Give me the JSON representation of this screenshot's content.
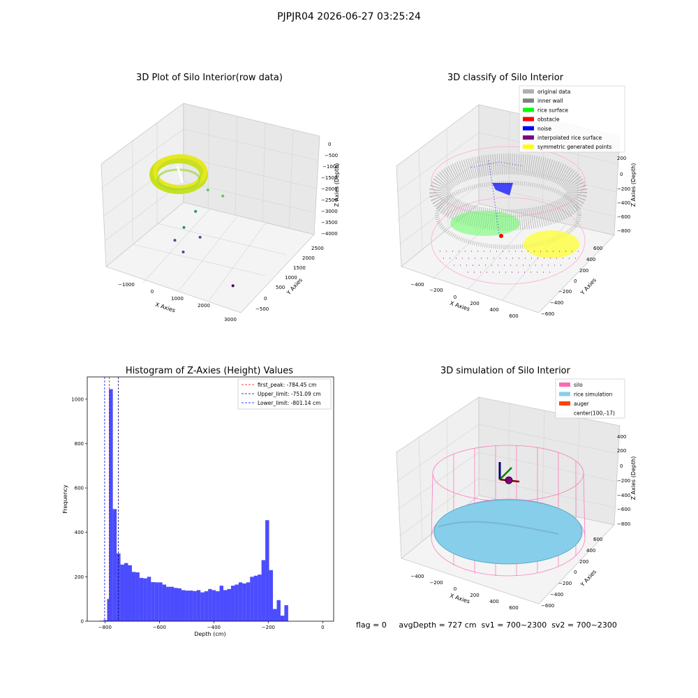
{
  "figure": {
    "suptitle": "PJPJR04 2026-06-27 03:25:24"
  },
  "footer": {
    "text": "flag = 0     avgDepth = 727 cm  sv1 = 700~2300  sv2 = 700~2300"
  },
  "chart_data": [
    {
      "type": "scatter",
      "subtype": "3d",
      "title": "3D Plot of Silo Interior(row data)",
      "xlabel": "X Axies",
      "ylabel": "Y Axies",
      "zlabel": "Z Axies (Depth)",
      "x_ticks": [
        "−1000",
        "0",
        "1000",
        "2000",
        "3000"
      ],
      "y_ticks": [
        "−500",
        "0",
        "500",
        "1000",
        "1500",
        "2000",
        "2500"
      ],
      "z_ticks": [
        "0",
        "−500",
        "−1000",
        "−1500",
        "−2000",
        "−2500",
        "−3000",
        "−3500",
        "−4000"
      ],
      "colormap": [
        "#440154",
        "#3b528b",
        "#21918c",
        "#5ec962",
        "#fde725"
      ],
      "outliers": [
        {
          "x": 1250,
          "y": 1200,
          "z": -2100
        },
        {
          "x": 1600,
          "y": 1500,
          "z": -2300
        },
        {
          "x": 1000,
          "y": 900,
          "z": -2600
        },
        {
          "x": 700,
          "y": 700,
          "z": -3000
        },
        {
          "x": 500,
          "y": 500,
          "z": -3300
        },
        {
          "x": 1400,
          "y": 600,
          "z": -3100
        },
        {
          "x": 900,
          "y": 400,
          "z": -3500
        },
        {
          "x": 2900,
          "y": 300,
          "z": -4000
        }
      ],
      "grid": true
    },
    {
      "type": "scatter",
      "subtype": "3d",
      "title": "3D classify of Silo Interior",
      "xlabel": "X Axies",
      "ylabel": "Y Axies",
      "zlabel": "Z Axies (Depth)",
      "x_ticks": [
        "−400",
        "−200",
        "0",
        "200",
        "400",
        "600"
      ],
      "y_ticks": [
        "−600",
        "−400",
        "−200",
        "0",
        "200",
        "400",
        "600"
      ],
      "z_ticks": [
        "200",
        "0",
        "−200",
        "−400",
        "−600",
        "−800"
      ],
      "legend": [
        {
          "label": "original data",
          "color": "#b0b0b0"
        },
        {
          "label": "inner wall",
          "color": "#808080"
        },
        {
          "label": "rice surface",
          "color": "#00ff00"
        },
        {
          "label": "obstacle",
          "color": "#ff0000"
        },
        {
          "label": "noise",
          "color": "#0000ff"
        },
        {
          "label": "interpolated rice surface",
          "color": "#800080"
        },
        {
          "label": "symmetric generated points",
          "color": "#ffff00"
        }
      ],
      "legend_position": "top-right",
      "grid": true
    },
    {
      "type": "bar",
      "subtype": "histogram",
      "title": "Histogram of Z-Axies (Height) Values",
      "xlabel": "Depth (cm)",
      "ylabel": "Frequency",
      "xlim": [
        -865,
        40
      ],
      "ylim": [
        0,
        1100
      ],
      "x_ticks": [
        -800,
        -600,
        -400,
        -200,
        0
      ],
      "y_ticks": [
        0,
        200,
        400,
        600,
        800,
        1000
      ],
      "bar_color": "#0000ff",
      "bins": [
        {
          "x0": -820,
          "x1": -806,
          "value": 2
        },
        {
          "x0": -806,
          "x1": -792,
          "value": 5
        },
        {
          "x0": -792,
          "x1": -785,
          "value": 100
        },
        {
          "x0": -785,
          "x1": -771,
          "value": 1045
        },
        {
          "x0": -771,
          "x1": -757,
          "value": 505
        },
        {
          "x0": -757,
          "x1": -743,
          "value": 305
        },
        {
          "x0": -743,
          "x1": -729,
          "value": 255
        },
        {
          "x0": -729,
          "x1": -715,
          "value": 262
        },
        {
          "x0": -715,
          "x1": -701,
          "value": 252
        },
        {
          "x0": -701,
          "x1": -687,
          "value": 222
        },
        {
          "x0": -687,
          "x1": -673,
          "value": 220
        },
        {
          "x0": -673,
          "x1": -659,
          "value": 195
        },
        {
          "x0": -659,
          "x1": -645,
          "value": 193
        },
        {
          "x0": -645,
          "x1": -631,
          "value": 200
        },
        {
          "x0": -631,
          "x1": -617,
          "value": 176
        },
        {
          "x0": -617,
          "x1": -603,
          "value": 175
        },
        {
          "x0": -603,
          "x1": -589,
          "value": 175
        },
        {
          "x0": -589,
          "x1": -575,
          "value": 165
        },
        {
          "x0": -575,
          "x1": -561,
          "value": 155
        },
        {
          "x0": -561,
          "x1": -547,
          "value": 155
        },
        {
          "x0": -547,
          "x1": -533,
          "value": 150
        },
        {
          "x0": -533,
          "x1": -519,
          "value": 148
        },
        {
          "x0": -519,
          "x1": -505,
          "value": 140
        },
        {
          "x0": -505,
          "x1": -491,
          "value": 138
        },
        {
          "x0": -491,
          "x1": -477,
          "value": 138
        },
        {
          "x0": -477,
          "x1": -463,
          "value": 136
        },
        {
          "x0": -463,
          "x1": -449,
          "value": 140
        },
        {
          "x0": -449,
          "x1": -435,
          "value": 130
        },
        {
          "x0": -435,
          "x1": -421,
          "value": 135
        },
        {
          "x0": -421,
          "x1": -407,
          "value": 145
        },
        {
          "x0": -407,
          "x1": -393,
          "value": 140
        },
        {
          "x0": -393,
          "x1": -379,
          "value": 135
        },
        {
          "x0": -379,
          "x1": -365,
          "value": 160
        },
        {
          "x0": -365,
          "x1": -351,
          "value": 140
        },
        {
          "x0": -351,
          "x1": -337,
          "value": 145
        },
        {
          "x0": -337,
          "x1": -323,
          "value": 160
        },
        {
          "x0": -323,
          "x1": -309,
          "value": 165
        },
        {
          "x0": -309,
          "x1": -295,
          "value": 175
        },
        {
          "x0": -295,
          "x1": -281,
          "value": 170
        },
        {
          "x0": -281,
          "x1": -267,
          "value": 175
        },
        {
          "x0": -267,
          "x1": -253,
          "value": 200
        },
        {
          "x0": -253,
          "x1": -239,
          "value": 205
        },
        {
          "x0": -239,
          "x1": -225,
          "value": 210
        },
        {
          "x0": -225,
          "x1": -211,
          "value": 275
        },
        {
          "x0": -211,
          "x1": -197,
          "value": 455
        },
        {
          "x0": -197,
          "x1": -183,
          "value": 230
        },
        {
          "x0": -183,
          "x1": -169,
          "value": 55
        },
        {
          "x0": -169,
          "x1": -155,
          "value": 95
        },
        {
          "x0": -155,
          "x1": -141,
          "value": 25
        },
        {
          "x0": -141,
          "x1": -127,
          "value": 72
        }
      ],
      "vlines": [
        {
          "label": "first_peak: -784.45 cm",
          "x": -784.45,
          "color": "#ff0000"
        },
        {
          "label": "Upper_limit: -751.09 cm",
          "x": -751.09,
          "color": "#000080"
        },
        {
          "label": "Lower_limit: -801.14 cm",
          "x": -801.14,
          "color": "#0000ff"
        }
      ],
      "legend_position": "top-right"
    },
    {
      "type": "scatter",
      "subtype": "3d",
      "title": "3D simulation of Silo Interior",
      "xlabel": "X Axies",
      "ylabel": "Y Axies",
      "zlabel": "Z Axies (Depth)",
      "x_ticks": [
        "−400",
        "−200",
        "0",
        "200",
        "400",
        "600"
      ],
      "y_ticks": [
        "−600",
        "−400",
        "−200",
        "0",
        "200",
        "400",
        "600"
      ],
      "z_ticks": [
        "400",
        "200",
        "0",
        "−200",
        "−400",
        "−600",
        "−800"
      ],
      "legend": [
        {
          "label": "silo",
          "color": "#ff69b4"
        },
        {
          "label": "rice simulation",
          "color": "#87ceeb"
        },
        {
          "label": "auger",
          "color": "#ff4500"
        },
        {
          "label": "center(100,-17)",
          "color": ""
        }
      ],
      "legend_position": "top-right",
      "grid": true
    }
  ]
}
